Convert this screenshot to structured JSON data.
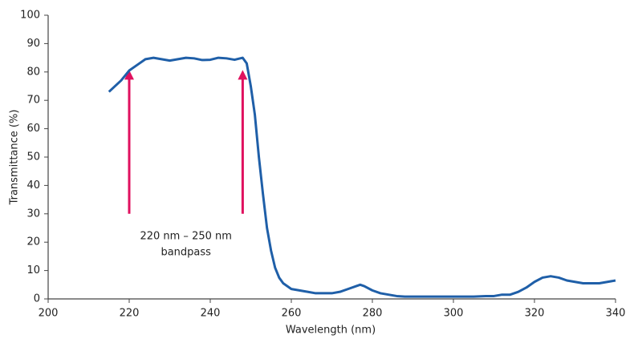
{
  "chart_data": {
    "type": "line",
    "x_label": "Wavelength (nm)",
    "y_label": "Transmittance (%)",
    "annotations": [
      "220 nm – 250 nm",
      "bandpass"
    ],
    "xlim": [
      200,
      340
    ],
    "xticks": [
      200,
      220,
      240,
      260,
      280,
      300,
      320,
      340
    ],
    "ylim": [
      0,
      100
    ],
    "yticks": [
      0,
      10,
      20,
      30,
      40,
      50,
      60,
      70,
      80,
      90,
      100
    ],
    "grid": false,
    "series": [
      {
        "color": "#1f5fa8",
        "x": [
          215,
          218,
          220,
          222,
          224,
          226,
          228,
          230,
          232,
          234,
          236,
          238,
          240,
          242,
          244,
          246,
          248,
          249,
          250,
          251,
          252,
          253,
          254,
          255,
          256,
          257,
          258,
          260,
          262,
          264,
          266,
          268,
          270,
          272,
          274,
          276,
          277,
          278,
          280,
          282,
          284,
          286,
          288,
          290,
          295,
          300,
          305,
          308,
          310,
          312,
          314,
          316,
          318,
          320,
          322,
          324,
          326,
          328,
          330,
          332,
          334,
          336,
          338,
          340
        ],
        "values": [
          73,
          77,
          80.5,
          82.5,
          84.5,
          85,
          84.5,
          84,
          84.5,
          85,
          84.8,
          84.2,
          84.3,
          85,
          84.8,
          84.3,
          85,
          83,
          75,
          65,
          50,
          37,
          25,
          17,
          11,
          7.5,
          5.5,
          3.5,
          3,
          2.5,
          2,
          2,
          2,
          2.5,
          3.5,
          4.5,
          5,
          4.5,
          3,
          2,
          1.5,
          1,
          0.8,
          0.8,
          0.8,
          0.8,
          0.8,
          1,
          1,
          1.5,
          1.5,
          2.5,
          4,
          6,
          7.5,
          8,
          7.5,
          6.5,
          6,
          5.5,
          5.5,
          5.5,
          6,
          6.5
        ]
      }
    ]
  }
}
